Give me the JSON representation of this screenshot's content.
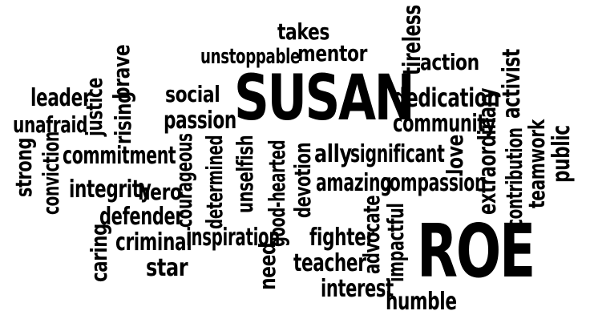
{
  "text_color": "#000000",
  "background": "#ffffff",
  "words": {
    "susan": "SUSAN",
    "roe": "ROE",
    "takes": "takes",
    "unstoppable": "unstoppable",
    "mentor": "mentor",
    "tireless": "tireless",
    "action": "action",
    "activist": "activist",
    "dedication": "dedication",
    "community": "community",
    "extraordinary": "extraordinary",
    "leader": "leader",
    "justice": "justice",
    "brave": "brave",
    "social": "social",
    "unafraid": "unafraid",
    "rising": "rising",
    "passion": "passion",
    "strong": "strong",
    "conviction": "conviction",
    "commitment": "commitment",
    "courageous": "courageous",
    "determined": "determined",
    "unselfish": "unselfish",
    "good_hearted": "good-hearted",
    "devotion": "devotion",
    "ally": "ally",
    "significant": "significant",
    "love": "love",
    "teamwork": "teamwork",
    "public": "public",
    "contribution": "contribution",
    "integrity": "integrity",
    "hero": "hero",
    "amazing": "amazing",
    "compassion": "compassion",
    "defender": "defender",
    "inspiration": "inspiration",
    "fighter": "fighter",
    "advocate": "advocate",
    "impactful": "impactful",
    "caring": "caring",
    "criminal": "criminal",
    "need": "need",
    "teacher": "teacher",
    "star": "star",
    "interest": "interest",
    "humble": "humble"
  }
}
